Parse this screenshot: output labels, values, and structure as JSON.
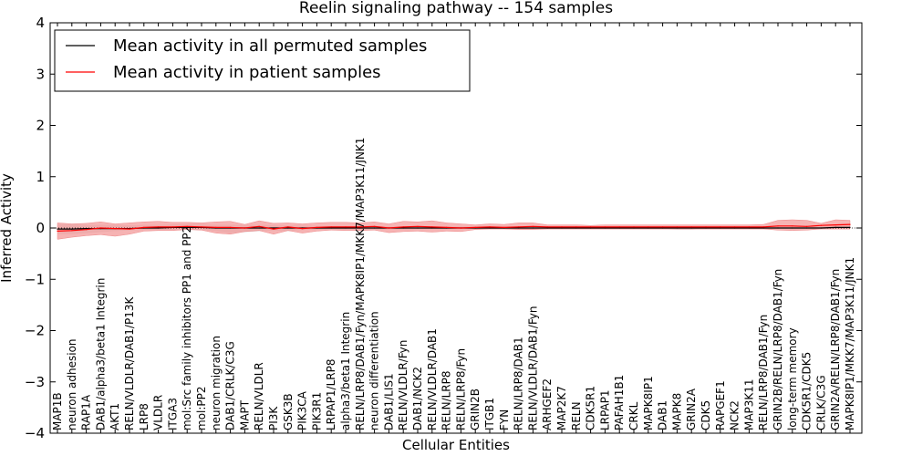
{
  "chart_data": {
    "type": "line",
    "title": "Reelin signaling pathway -- 154 samples",
    "xlabel": "Cellular Entities",
    "ylabel": "Inferred Activity",
    "ylim": [
      -4,
      4
    ],
    "yticks": [
      -4,
      -3,
      -2,
      -1,
      0,
      1,
      2,
      3,
      4
    ],
    "ytick_labels": [
      "−4",
      "−3",
      "−2",
      "−1",
      "0",
      "1",
      "2",
      "3",
      "4"
    ],
    "legend_position": "top-left",
    "colors": {
      "permuted": "#000000",
      "patient": "#ff0000",
      "patient_band": "#f4a0a0",
      "permuted_band": "#c8c8c8"
    },
    "categories": [
      "MAP1B",
      "neuron adhesion",
      "RAP1A",
      "DAB1/alpha3/beta1 Integrin",
      "AKT1",
      "RELN/VLDLR/DAB1/P13K",
      "LRP8",
      "VLDLR",
      "ITGA3",
      "mol:Src family inhibitors PP1 and PP2",
      "mol:PP2",
      "neuron migration",
      "DAB1/CRLK/C3G",
      "MAPT",
      "RELN/VLDLR",
      "PI3K",
      "GSK3B",
      "PIK3CA",
      "PIK3R1",
      "LRPAP1/LRP8",
      "alpha3/beta1 Integrin",
      "RELN/LRP8/DAB1/Fyn/MAPK8IP1/MKK7/MAP3K11/JNK1",
      "neuron differentiation",
      "DAB1/LIS1",
      "RELN/VLDLR/Fyn",
      "DAB1/NCK2",
      "RELN/VLDLR/DAB1",
      "RELN/LRP8",
      "RELN/LRP8/Fyn",
      "GRIN2B",
      "ITGB1",
      "FYN",
      "RELN/LRP8/DAB1",
      "RELN/VLDLR/DAB1/Fyn",
      "ARHGEF2",
      "MAP2K7",
      "RELN",
      "CDK5R1",
      "LRPAP1",
      "PAFAH1B1",
      "CRKL",
      "MAPK8IP1",
      "DAB1",
      "MAPK8",
      "GRIN2A",
      "CDK5",
      "RAPGEF1",
      "NCK2",
      "MAP3K11",
      "RELN/LRP8/DAB1/Fyn",
      "GRIN2B/RELN/LRP8/DAB1/Fyn",
      "long-term memory",
      "CDK5R1/CDK5",
      "CRLK/C3G",
      "GRIN2A/RELN/LRP8/DAB1/Fyn",
      "MAPK8IP1/MKK7/MAP3K11/JNK1"
    ],
    "series": [
      {
        "name": "Mean activity in all permuted samples",
        "color": "#000000",
        "values": [
          -0.02,
          -0.02,
          -0.01,
          -0.01,
          -0.01,
          -0.01,
          0.0,
          0.0,
          0.01,
          0.01,
          0.01,
          0.0,
          0.0,
          0.0,
          0.0,
          0.0,
          0.0,
          0.0,
          0.0,
          0.0,
          0.0,
          0.0,
          0.0,
          0.0,
          0.0,
          0.0,
          0.0,
          0.0,
          0.0,
          0.0,
          0.0,
          0.0,
          0.0,
          0.0,
          0.0,
          0.0,
          0.0,
          0.0,
          0.0,
          0.0,
          0.0,
          0.0,
          0.0,
          0.0,
          0.0,
          0.0,
          0.0,
          0.0,
          0.0,
          0.0,
          0.0,
          0.0,
          0.0,
          0.0,
          0.01,
          0.01
        ],
        "lower": [
          -0.12,
          -0.12,
          -0.1,
          -0.08,
          -0.06,
          -0.05,
          -0.04,
          -0.04,
          -0.03,
          -0.03,
          -0.04,
          -0.06,
          -0.1,
          -0.08,
          -0.06,
          -0.05,
          -0.06,
          -0.04,
          -0.03,
          -0.03,
          -0.03,
          -0.03,
          -0.03,
          -0.03,
          -0.03,
          -0.02,
          -0.02,
          -0.02,
          -0.02,
          -0.02,
          -0.02,
          -0.02,
          -0.02,
          -0.02,
          -0.02,
          -0.02,
          -0.02,
          -0.02,
          -0.02,
          -0.02,
          -0.02,
          -0.02,
          -0.02,
          -0.03,
          -0.03,
          -0.02,
          -0.02,
          -0.02,
          -0.02,
          -0.02,
          -0.02,
          -0.02,
          -0.02,
          -0.02,
          -0.02,
          -0.02
        ],
        "upper": [
          0.08,
          0.07,
          0.06,
          0.06,
          0.06,
          0.05,
          0.06,
          0.06,
          0.07,
          0.08,
          0.07,
          0.06,
          0.06,
          0.06,
          0.06,
          0.05,
          0.05,
          0.05,
          0.04,
          0.04,
          0.04,
          0.04,
          0.04,
          0.03,
          0.03,
          0.03,
          0.03,
          0.03,
          0.03,
          0.03,
          0.03,
          0.03,
          0.03,
          0.03,
          0.03,
          0.03,
          0.03,
          0.03,
          0.03,
          0.03,
          0.03,
          0.03,
          0.03,
          0.03,
          0.03,
          0.03,
          0.03,
          0.03,
          0.03,
          0.03,
          0.03,
          0.03,
          0.03,
          0.03,
          0.04,
          0.04
        ]
      },
      {
        "name": "Mean activity in patient samples",
        "color": "#ff0000",
        "values": [
          -0.06,
          -0.05,
          -0.03,
          0.0,
          -0.01,
          -0.02,
          0.01,
          0.02,
          0.02,
          0.03,
          0.02,
          0.01,
          0.01,
          0.0,
          0.03,
          -0.02,
          0.02,
          -0.01,
          0.01,
          0.02,
          0.02,
          0.02,
          0.03,
          0.0,
          0.02,
          0.03,
          0.02,
          0.01,
          0.0,
          0.01,
          0.02,
          0.01,
          0.02,
          0.03,
          0.02,
          0.02,
          0.02,
          0.02,
          0.02,
          0.02,
          0.02,
          0.02,
          0.02,
          0.02,
          0.02,
          0.02,
          0.02,
          0.02,
          0.02,
          0.02,
          0.04,
          0.04,
          0.03,
          0.05,
          0.06,
          0.07
        ],
        "lower": [
          -0.22,
          -0.18,
          -0.15,
          -0.13,
          -0.16,
          -0.12,
          -0.06,
          -0.05,
          -0.05,
          -0.03,
          -0.04,
          -0.1,
          -0.12,
          -0.07,
          -0.05,
          -0.12,
          -0.05,
          -0.1,
          -0.06,
          -0.04,
          -0.05,
          -0.05,
          -0.04,
          -0.09,
          -0.07,
          -0.06,
          -0.08,
          -0.06,
          -0.07,
          -0.03,
          -0.02,
          -0.02,
          -0.03,
          -0.03,
          -0.02,
          -0.02,
          -0.02,
          -0.02,
          -0.02,
          -0.02,
          -0.02,
          -0.02,
          -0.02,
          -0.02,
          -0.02,
          -0.02,
          -0.02,
          -0.02,
          -0.02,
          -0.02,
          -0.04,
          -0.05,
          -0.04,
          -0.02,
          -0.02,
          -0.02
        ],
        "upper": [
          0.1,
          0.08,
          0.09,
          0.12,
          0.08,
          0.1,
          0.12,
          0.13,
          0.11,
          0.11,
          0.1,
          0.12,
          0.13,
          0.07,
          0.14,
          0.09,
          0.1,
          0.08,
          0.1,
          0.11,
          0.11,
          0.1,
          0.12,
          0.08,
          0.13,
          0.12,
          0.14,
          0.1,
          0.08,
          0.06,
          0.08,
          0.07,
          0.1,
          0.1,
          0.06,
          0.06,
          0.06,
          0.05,
          0.06,
          0.06,
          0.06,
          0.06,
          0.06,
          0.06,
          0.06,
          0.06,
          0.06,
          0.06,
          0.06,
          0.07,
          0.15,
          0.16,
          0.15,
          0.09,
          0.16,
          0.15
        ]
      }
    ]
  }
}
